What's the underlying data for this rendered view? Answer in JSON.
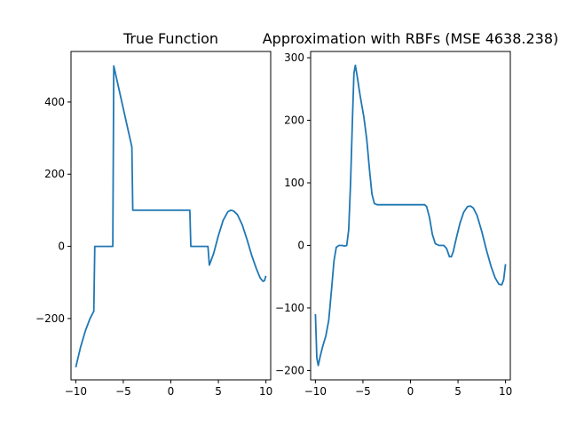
{
  "chart_data": [
    {
      "type": "line",
      "title": "True Function",
      "xlabel": "",
      "ylabel": "",
      "xlim": [
        -10.5,
        10.5
      ],
      "ylim": [
        -370,
        540
      ],
      "xticks": [
        -10,
        -5,
        0,
        5,
        10
      ],
      "xtick_labels": [
        "−10",
        "−5",
        "0",
        "5",
        "10"
      ],
      "yticks": [
        -200,
        0,
        200,
        400
      ],
      "ytick_labels": [
        "−200",
        "0",
        "200",
        "400"
      ],
      "series": [
        {
          "color": "#1f77b4",
          "points": [
            [
              -10,
              -335
            ],
            [
              -9.5,
              -280
            ],
            [
              -9,
              -235
            ],
            [
              -8.5,
              -200
            ],
            [
              -8.1,
              -180
            ],
            [
              -8.0,
              0
            ],
            [
              -6.1,
              0
            ],
            [
              -6.0,
              500
            ],
            [
              -4.1,
              275
            ],
            [
              -4.0,
              100
            ],
            [
              2.0,
              100
            ],
            [
              2.1,
              0
            ],
            [
              3.9,
              0
            ],
            [
              4.05,
              -52
            ],
            [
              4.5,
              -20
            ],
            [
              5.0,
              30
            ],
            [
              5.5,
              72
            ],
            [
              6.0,
              96
            ],
            [
              6.3,
              100
            ],
            [
              6.6,
              98
            ],
            [
              7.0,
              88
            ],
            [
              7.5,
              60
            ],
            [
              8.0,
              20
            ],
            [
              8.5,
              -25
            ],
            [
              9.0,
              -62
            ],
            [
              9.4,
              -88
            ],
            [
              9.7,
              -97
            ],
            [
              9.85,
              -95
            ],
            [
              10.0,
              -82
            ]
          ]
        }
      ]
    },
    {
      "type": "line",
      "title": "Approximation with RBFs (MSE 4638.238)",
      "xlabel": "",
      "ylabel": "",
      "xlim": [
        -10.5,
        10.5
      ],
      "ylim": [
        -215,
        310
      ],
      "xticks": [
        -10,
        -5,
        0,
        5,
        10
      ],
      "xtick_labels": [
        "−10",
        "−5",
        "0",
        "5",
        "10"
      ],
      "yticks": [
        -200,
        -100,
        0,
        100,
        200,
        300
      ],
      "ytick_labels": [
        "−200",
        "−100",
        "0",
        "100",
        "200",
        "300"
      ],
      "series": [
        {
          "color": "#1f77b4",
          "points": [
            [
              -10.0,
              -110
            ],
            [
              -9.85,
              -180
            ],
            [
              -9.7,
              -192
            ],
            [
              -9.5,
              -178
            ],
            [
              -9.2,
              -160
            ],
            [
              -8.9,
              -145
            ],
            [
              -8.6,
              -120
            ],
            [
              -8.3,
              -70
            ],
            [
              -8.05,
              -25
            ],
            [
              -7.8,
              -3
            ],
            [
              -7.5,
              0
            ],
            [
              -7.2,
              0
            ],
            [
              -6.9,
              -1
            ],
            [
              -6.7,
              0
            ],
            [
              -6.5,
              25
            ],
            [
              -6.3,
              100
            ],
            [
              -6.1,
              200
            ],
            [
              -5.95,
              275
            ],
            [
              -5.8,
              288
            ],
            [
              -5.6,
              270
            ],
            [
              -5.3,
              240
            ],
            [
              -4.9,
              205
            ],
            [
              -4.6,
              170
            ],
            [
              -4.3,
              120
            ],
            [
              -4.05,
              82
            ],
            [
              -3.8,
              67
            ],
            [
              -3.5,
              65
            ],
            [
              -2.0,
              65
            ],
            [
              0.0,
              65
            ],
            [
              1.0,
              65
            ],
            [
              1.5,
              65
            ],
            [
              1.7,
              62
            ],
            [
              2.0,
              45
            ],
            [
              2.3,
              18
            ],
            [
              2.6,
              3
            ],
            [
              3.0,
              0
            ],
            [
              3.5,
              0
            ],
            [
              3.8,
              -5
            ],
            [
              4.1,
              -18
            ],
            [
              4.3,
              -18
            ],
            [
              4.5,
              -10
            ],
            [
              4.8,
              10
            ],
            [
              5.2,
              35
            ],
            [
              5.6,
              53
            ],
            [
              6.0,
              62
            ],
            [
              6.3,
              63
            ],
            [
              6.6,
              60
            ],
            [
              7.0,
              48
            ],
            [
              7.5,
              22
            ],
            [
              8.0,
              -8
            ],
            [
              8.5,
              -35
            ],
            [
              8.9,
              -52
            ],
            [
              9.3,
              -62
            ],
            [
              9.6,
              -63
            ],
            [
              9.8,
              -55
            ],
            [
              10.0,
              -30
            ]
          ]
        }
      ]
    }
  ]
}
